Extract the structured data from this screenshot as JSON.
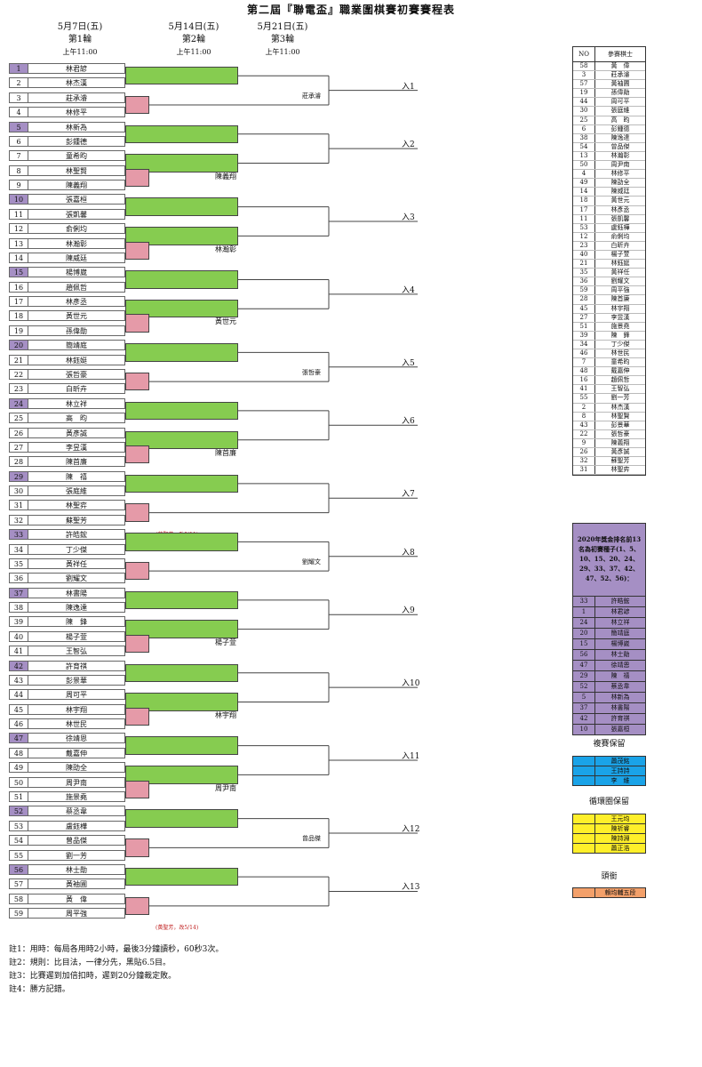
{
  "title": "第二屆『聯電盃』職業圍棋賽初賽賽程表",
  "rounds": [
    {
      "date": "5月7日(五)",
      "label": "第1輪",
      "time": "上午11:00"
    },
    {
      "date": "5月14日(五)",
      "label": "第2輪",
      "time": "上午11:00"
    },
    {
      "date": "5月21日(五)",
      "label": "第3輪",
      "time": "上午11:00"
    }
  ],
  "players": [
    {
      "no": "1",
      "name": "林君諺",
      "seed": true
    },
    {
      "no": "2",
      "name": "林杰漢",
      "seed": false
    },
    {
      "no": "3",
      "name": "莊承濬",
      "seed": false
    },
    {
      "no": "4",
      "name": "林修平",
      "seed": false
    },
    {
      "no": "5",
      "name": "林新為",
      "seed": true
    },
    {
      "no": "6",
      "name": "彭鍾德",
      "seed": false
    },
    {
      "no": "7",
      "name": "童希昀",
      "seed": false
    },
    {
      "no": "8",
      "name": "林聖賢",
      "seed": false
    },
    {
      "no": "9",
      "name": "陳義翔",
      "seed": false
    },
    {
      "no": "10",
      "name": "張嘉桓",
      "seed": true
    },
    {
      "no": "11",
      "name": "張凱馨",
      "seed": false
    },
    {
      "no": "12",
      "name": "俞俐均",
      "seed": false
    },
    {
      "no": "13",
      "name": "林瀚彰",
      "seed": false
    },
    {
      "no": "14",
      "name": "陳威廷",
      "seed": false
    },
    {
      "no": "15",
      "name": "楊博崴",
      "seed": true
    },
    {
      "no": "16",
      "name": "趙佩哲",
      "seed": false
    },
    {
      "no": "17",
      "name": "林彥丞",
      "seed": false
    },
    {
      "no": "18",
      "name": "黃世元",
      "seed": false
    },
    {
      "no": "19",
      "name": "孫偉勛",
      "seed": false
    },
    {
      "no": "20",
      "name": "簡靖庭",
      "seed": true
    },
    {
      "no": "21",
      "name": "林鈺娗",
      "seed": false
    },
    {
      "no": "22",
      "name": "張哲豪",
      "seed": false
    },
    {
      "no": "23",
      "name": "白昕卉",
      "seed": false
    },
    {
      "no": "24",
      "name": "林立祥",
      "seed": true
    },
    {
      "no": "25",
      "name": "高　昀",
      "seed": false
    },
    {
      "no": "26",
      "name": "黃彥誠",
      "seed": false
    },
    {
      "no": "27",
      "name": "李昱漢",
      "seed": false
    },
    {
      "no": "28",
      "name": "陳首廉",
      "seed": false
    },
    {
      "no": "29",
      "name": "陳　禧",
      "seed": true
    },
    {
      "no": "30",
      "name": "張庭維",
      "seed": false
    },
    {
      "no": "31",
      "name": "林聖弈",
      "seed": false
    },
    {
      "no": "32",
      "name": "蘇聖芳",
      "seed": false
    },
    {
      "no": "33",
      "name": "許皓鋐",
      "seed": true
    },
    {
      "no": "34",
      "name": "丁少傑",
      "seed": false
    },
    {
      "no": "35",
      "name": "黃祥任",
      "seed": false
    },
    {
      "no": "36",
      "name": "劉耀文",
      "seed": false
    },
    {
      "no": "37",
      "name": "林書陽",
      "seed": true
    },
    {
      "no": "38",
      "name": "陳逸達",
      "seed": false
    },
    {
      "no": "39",
      "name": "陳　鋒",
      "seed": false
    },
    {
      "no": "40",
      "name": "楊子萱",
      "seed": false
    },
    {
      "no": "41",
      "name": "王智弘",
      "seed": false
    },
    {
      "no": "42",
      "name": "許育祺",
      "seed": true
    },
    {
      "no": "43",
      "name": "彭景華",
      "seed": false
    },
    {
      "no": "44",
      "name": "周可平",
      "seed": false
    },
    {
      "no": "45",
      "name": "林宇翔",
      "seed": false
    },
    {
      "no": "46",
      "name": "林世民",
      "seed": false
    },
    {
      "no": "47",
      "name": "徐靖恩",
      "seed": true
    },
    {
      "no": "48",
      "name": "戴嘉伸",
      "seed": false
    },
    {
      "no": "49",
      "name": "陳劭全",
      "seed": false
    },
    {
      "no": "50",
      "name": "周尹南",
      "seed": false
    },
    {
      "no": "51",
      "name": "施景堯",
      "seed": false
    },
    {
      "no": "52",
      "name": "蔡丞韋",
      "seed": true
    },
    {
      "no": "53",
      "name": "盧鈺樺",
      "seed": false
    },
    {
      "no": "54",
      "name": "曾品傑",
      "seed": false
    },
    {
      "no": "55",
      "name": "劉一芳",
      "seed": false
    },
    {
      "no": "56",
      "name": "林士勛",
      "seed": true
    },
    {
      "no": "57",
      "name": "黃袖圃",
      "seed": false
    },
    {
      "no": "58",
      "name": "黃　偉",
      "seed": false
    },
    {
      "no": "59",
      "name": "周平強",
      "seed": false
    }
  ],
  "winners": {
    "g1": "莊承濬",
    "g2": "陳義翔",
    "g3": "林瀚彰",
    "g4": "黃世元",
    "g5": "張哲豪",
    "g6": "陳首廉",
    "g8": "劉耀文",
    "g9": "楊子萱",
    "g10": "林宇翔",
    "g11": "周尹南",
    "g12": "曾品傑"
  },
  "entries": [
    "入1",
    "入2",
    "入3",
    "入4",
    "入5",
    "入6",
    "入7",
    "入8",
    "入9",
    "入10",
    "入11",
    "入12",
    "入13"
  ],
  "notes": {
    "g7": "(蘇聖芳，改5/11)",
    "g13": "(黃聖芳，改5/14)"
  },
  "footnotes": [
    "註1：用時：每局各用時2小時，最後3分鐘讀秒，60秒3次。",
    "註2：規則：比目法，一律分先，黑貼6.5目。",
    "註3：比賽遲到加倍扣時，遲到20分鐘裁定敗。",
    "註4：勝方記錯。"
  ],
  "participants": {
    "headers": [
      "NO",
      "參賽棋士"
    ],
    "rows": [
      [
        "58",
        "黃　偉"
      ],
      [
        "3",
        "莊承濬"
      ],
      [
        "57",
        "黃袖圃"
      ],
      [
        "19",
        "孫偉勛"
      ],
      [
        "44",
        "周可平"
      ],
      [
        "30",
        "張庭維"
      ],
      [
        "25",
        "高　昀"
      ],
      [
        "6",
        "彭鍾德"
      ],
      [
        "38",
        "陳逸達"
      ],
      [
        "54",
        "曾品傑"
      ],
      [
        "13",
        "林瀚彰"
      ],
      [
        "50",
        "周尹南"
      ],
      [
        "4",
        "林修平"
      ],
      [
        "49",
        "陳劭全"
      ],
      [
        "14",
        "陳威廷"
      ],
      [
        "18",
        "黃世元"
      ],
      [
        "17",
        "林彥丞"
      ],
      [
        "11",
        "張凱馨"
      ],
      [
        "53",
        "盧鈺樺"
      ],
      [
        "12",
        "俞俐均"
      ],
      [
        "23",
        "白昕卉"
      ],
      [
        "40",
        "楊子萱"
      ],
      [
        "21",
        "林鈺娗"
      ],
      [
        "35",
        "黃祥任"
      ],
      [
        "36",
        "劉耀文"
      ],
      [
        "59",
        "周平強"
      ],
      [
        "28",
        "陳首廉"
      ],
      [
        "45",
        "林宇翔"
      ],
      [
        "27",
        "李昱漢"
      ],
      [
        "51",
        "施景堯"
      ],
      [
        "39",
        "陳　鋒"
      ],
      [
        "34",
        "丁少傑"
      ],
      [
        "46",
        "林世民"
      ],
      [
        "7",
        "童希昀"
      ],
      [
        "48",
        "戴嘉伸"
      ],
      [
        "16",
        "趙佩哲"
      ],
      [
        "41",
        "王智弘"
      ],
      [
        "55",
        "劉一芳"
      ],
      [
        "2",
        "林杰漢"
      ],
      [
        "8",
        "林聖賢"
      ],
      [
        "43",
        "彭景華"
      ],
      [
        "22",
        "張哲豪"
      ],
      [
        "9",
        "陳義翔"
      ],
      [
        "26",
        "黃彥誠"
      ],
      [
        "32",
        "蘇聖芳"
      ],
      [
        "31",
        "林聖弈"
      ]
    ]
  },
  "seeds": {
    "caption": "2020年獎金排名前13名為初賽種子(1、5、10、15、20、24、29、33、37、42、47、52、56)：",
    "rows": [
      [
        "33",
        "許皓鋐"
      ],
      [
        "1",
        "林君諺"
      ],
      [
        "24",
        "林立祥"
      ],
      [
        "20",
        "簡靖庭"
      ],
      [
        "15",
        "楊博崴"
      ],
      [
        "56",
        "林士勛"
      ],
      [
        "47",
        "徐靖恩"
      ],
      [
        "29",
        "陳　禧"
      ],
      [
        "52",
        "蔡丞韋"
      ],
      [
        "5",
        "林新為"
      ],
      [
        "37",
        "林書陽"
      ],
      [
        "42",
        "許育祺"
      ],
      [
        "10",
        "張嘉桓"
      ]
    ]
  },
  "reserve_final": {
    "title": "複賽保留",
    "names": [
      "蕭茂銘",
      "王詩詩",
      "李　維"
    ],
    "color": "#1aa3e8"
  },
  "reserve_round": {
    "title": "循環圈保留",
    "names": [
      "王元均",
      "陳祈睿",
      "陳詩淵",
      "蕭正浩"
    ],
    "color": "#ffef2a"
  },
  "honor": {
    "title": "頭銜",
    "names": [
      "賴均輔五段"
    ],
    "color": "#f3a06a"
  }
}
